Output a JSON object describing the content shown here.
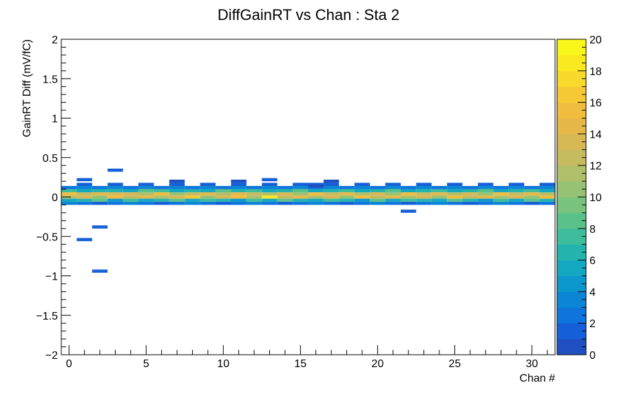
{
  "chart_data": {
    "type": "heatmap",
    "title": "DiffGainRT vs Chan : Sta 2",
    "xlabel": "Chan #",
    "ylabel": "GainRT Diff (mV/fC)",
    "xlim": [
      -0.5,
      31.5
    ],
    "ylim": [
      -2,
      2
    ],
    "x_ticks": [
      0,
      5,
      10,
      15,
      20,
      25,
      30
    ],
    "y_ticks": [
      -2,
      -1.5,
      -1,
      -0.5,
      0,
      0.5,
      1,
      1.5,
      2
    ],
    "y_tick_labels": [
      "−2",
      "−1.5",
      "−1",
      "−0.5",
      "0",
      "0.5",
      "1",
      "1.5",
      "2"
    ],
    "z_range": [
      0,
      20
    ],
    "z_ticks": [
      0,
      2,
      4,
      6,
      8,
      10,
      12,
      14,
      16,
      18,
      20
    ],
    "y_bin_width": 0.04,
    "band_y_bins": [
      -0.1,
      -0.06,
      -0.02,
      0.02,
      0.06,
      0.1,
      0.14,
      0.18
    ],
    "band_counts": [
      [
        4,
        6,
        12,
        16,
        8,
        3,
        0,
        0
      ],
      [
        3,
        7,
        14,
        13,
        6,
        4,
        2,
        0
      ],
      [
        2,
        9,
        11,
        15,
        7,
        3,
        0,
        0
      ],
      [
        3,
        5,
        16,
        14,
        7,
        4,
        2,
        0
      ],
      [
        4,
        8,
        13,
        14,
        6,
        3,
        0,
        0
      ],
      [
        3,
        6,
        15,
        12,
        9,
        4,
        2,
        0
      ],
      [
        2,
        7,
        12,
        16,
        8,
        3,
        0,
        0
      ],
      [
        3,
        9,
        14,
        11,
        6,
        4,
        2,
        1
      ],
      [
        4,
        6,
        17,
        13,
        7,
        3,
        0,
        0
      ],
      [
        3,
        8,
        11,
        15,
        6,
        4,
        2,
        0
      ],
      [
        2,
        7,
        14,
        12,
        9,
        3,
        0,
        0
      ],
      [
        3,
        5,
        16,
        15,
        7,
        4,
        2,
        1
      ],
      [
        4,
        8,
        12,
        13,
        8,
        3,
        0,
        0
      ],
      [
        3,
        6,
        19,
        12,
        6,
        4,
        2,
        0
      ],
      [
        2,
        9,
        13,
        14,
        7,
        3,
        0,
        0
      ],
      [
        3,
        7,
        15,
        11,
        9,
        4,
        2,
        0
      ],
      [
        4,
        6,
        12,
        16,
        6,
        3,
        2,
        0
      ],
      [
        3,
        8,
        14,
        13,
        7,
        4,
        2,
        1
      ],
      [
        2,
        7,
        11,
        15,
        8,
        3,
        0,
        0
      ],
      [
        3,
        5,
        16,
        12,
        6,
        4,
        2,
        0
      ],
      [
        4,
        9,
        13,
        14,
        7,
        3,
        0,
        0
      ],
      [
        3,
        6,
        15,
        11,
        9,
        4,
        2,
        0
      ],
      [
        2,
        8,
        12,
        16,
        6,
        3,
        0,
        0
      ],
      [
        3,
        7,
        14,
        13,
        7,
        4,
        2,
        0
      ],
      [
        4,
        6,
        11,
        15,
        8,
        3,
        0,
        0
      ],
      [
        3,
        9,
        16,
        12,
        6,
        4,
        2,
        0
      ],
      [
        2,
        7,
        13,
        14,
        7,
        3,
        0,
        0
      ],
      [
        3,
        5,
        15,
        11,
        9,
        4,
        2,
        0
      ],
      [
        4,
        8,
        12,
        16,
        6,
        3,
        0,
        0
      ],
      [
        3,
        6,
        14,
        13,
        7,
        4,
        2,
        0
      ],
      [
        2,
        9,
        11,
        15,
        8,
        3,
        0,
        0
      ],
      [
        3,
        7,
        16,
        12,
        6,
        4,
        2,
        0
      ]
    ],
    "outliers": [
      {
        "x": 1,
        "y": 0.22,
        "count": 2
      },
      {
        "x": 3,
        "y": 0.34,
        "count": 2
      },
      {
        "x": 13,
        "y": 0.22,
        "count": 2
      },
      {
        "x": 16,
        "y": 0.14,
        "count": 1
      },
      {
        "x": 22,
        "y": -0.18,
        "count": 2
      },
      {
        "x": 2,
        "y": -0.38,
        "count": 2
      },
      {
        "x": 1,
        "y": -0.54,
        "count": 2
      },
      {
        "x": 2,
        "y": -0.94,
        "count": 2
      }
    ],
    "palette": [
      "#2c3b9f",
      "#1f4fc0",
      "#1560d8",
      "#0f74dc",
      "#0b86d6",
      "#0c98cc",
      "#14a8c0",
      "#24b4ae",
      "#3dbd9b",
      "#5ac18b",
      "#7ac37e",
      "#97c273",
      "#b0bf69",
      "#c6bb5f",
      "#d8b855",
      "#e6b84a",
      "#f1bd3f",
      "#f7c835",
      "#f9d92b",
      "#fae821",
      "#f9f719"
    ]
  }
}
